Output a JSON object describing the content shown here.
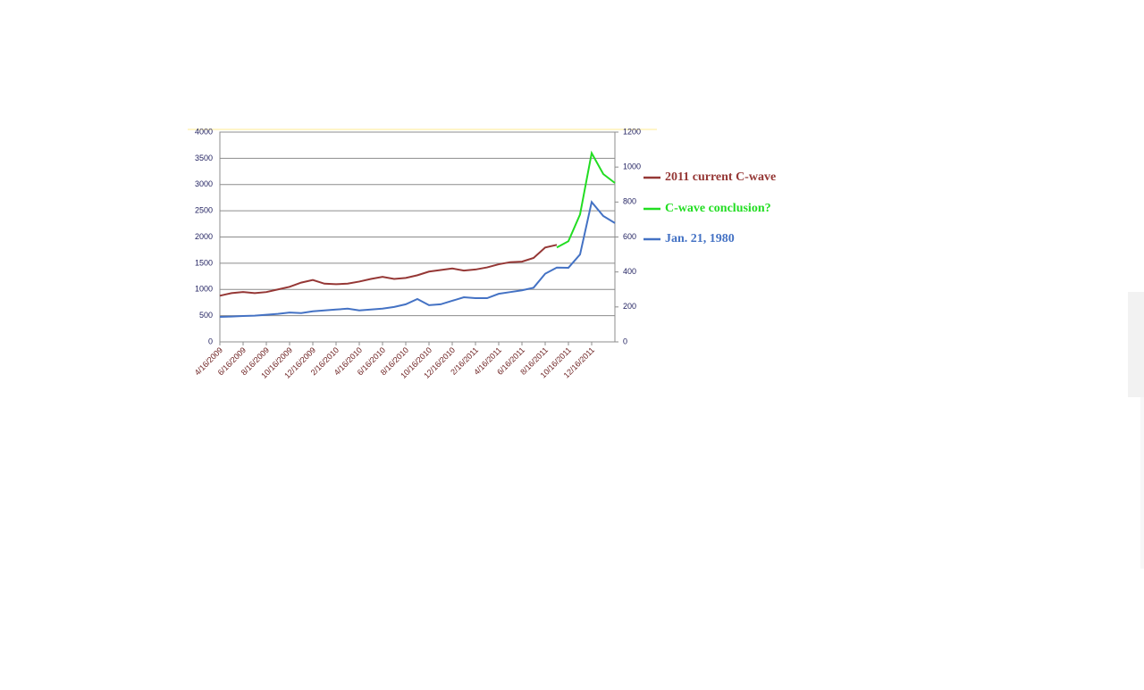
{
  "chart_data": {
    "type": "line",
    "categories": [
      "4/16/2009",
      null,
      "6/16/2009",
      null,
      "8/16/2009",
      null,
      "10/16/2009",
      null,
      "12/16/2009",
      null,
      "2/16/2010",
      null,
      "4/16/2010",
      null,
      "6/16/2010",
      null,
      "8/16/2010",
      null,
      "10/16/2010",
      null,
      "12/16/2010",
      null,
      "2/16/2011",
      null,
      "4/16/2011",
      null,
      "6/16/2011",
      null,
      "8/16/2011",
      null,
      "10/16/2011",
      null,
      "12/16/2011",
      null,
      null
    ],
    "ylim": [
      0,
      4000
    ],
    "yticks": [
      0,
      500,
      1000,
      1500,
      2000,
      2500,
      3000,
      3500,
      4000
    ],
    "y2lim": [
      0,
      1200
    ],
    "y2ticks": [
      0,
      200,
      400,
      600,
      800,
      1000,
      1200
    ],
    "grid": true,
    "series": [
      {
        "name": "2011 current C-wave",
        "color": "#953735",
        "values": [
          880,
          930,
          950,
          930,
          950,
          1000,
          1050,
          1130,
          1180,
          1110,
          1100,
          1110,
          1150,
          1200,
          1240,
          1200,
          1220,
          1270,
          1340,
          1370,
          1400,
          1360,
          1380,
          1420,
          1480,
          1520,
          1530,
          1600,
          1800,
          1850,
          null,
          null,
          null,
          null,
          null
        ]
      },
      {
        "name": "C-wave conclusion?",
        "color": "#22dd22",
        "values": [
          null,
          null,
          null,
          null,
          null,
          null,
          null,
          null,
          null,
          null,
          null,
          null,
          null,
          null,
          null,
          null,
          null,
          null,
          null,
          null,
          null,
          null,
          null,
          null,
          null,
          null,
          null,
          null,
          null,
          1800,
          1920,
          2430,
          3600,
          3200,
          3030
        ]
      },
      {
        "name": "Jan. 21, 1980",
        "color": "#4472c4",
        "axis": "y2",
        "values": [
          143,
          145,
          148,
          150,
          155,
          160,
          168,
          165,
          175,
          180,
          185,
          190,
          180,
          185,
          190,
          200,
          215,
          245,
          210,
          215,
          235,
          255,
          250,
          250,
          275,
          285,
          295,
          310,
          390,
          425,
          424,
          500,
          800,
          720,
          680
        ]
      }
    ]
  }
}
